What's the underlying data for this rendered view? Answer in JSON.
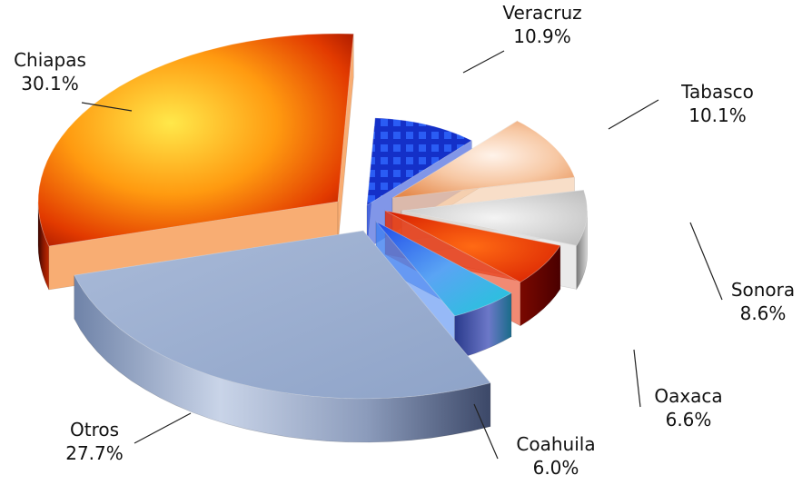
{
  "chart_data": {
    "type": "pie",
    "title": "",
    "unit": "%",
    "exploded": true,
    "three_d": true,
    "legend": "none",
    "slices": [
      {
        "label": "Veracruz",
        "value": 10.9,
        "value_text": "10.9%",
        "color": "#1a3fd6",
        "key": "veracruz"
      },
      {
        "label": "Tabasco",
        "value": 10.1,
        "value_text": "10.1%",
        "color": "#f2c29a",
        "key": "tabasco"
      },
      {
        "label": "Sonora",
        "value": 8.6,
        "value_text": "8.6%",
        "color": "#d8d8d8",
        "key": "sonora"
      },
      {
        "label": "Oaxaca",
        "value": 6.6,
        "value_text": "6.6%",
        "color": "#e52a00",
        "key": "oaxaca"
      },
      {
        "label": "Coahuila",
        "value": 6.0,
        "value_text": "6.0%",
        "color": "#3f7ff0",
        "key": "coahuila"
      },
      {
        "label": "Otros",
        "value": 27.7,
        "value_text": "27.7%",
        "color": "#9aaed0",
        "key": "otros"
      },
      {
        "label": "Chiapas",
        "value": 30.1,
        "value_text": "30.1%",
        "color": "#f26a00",
        "key": "chiapas"
      }
    ]
  }
}
